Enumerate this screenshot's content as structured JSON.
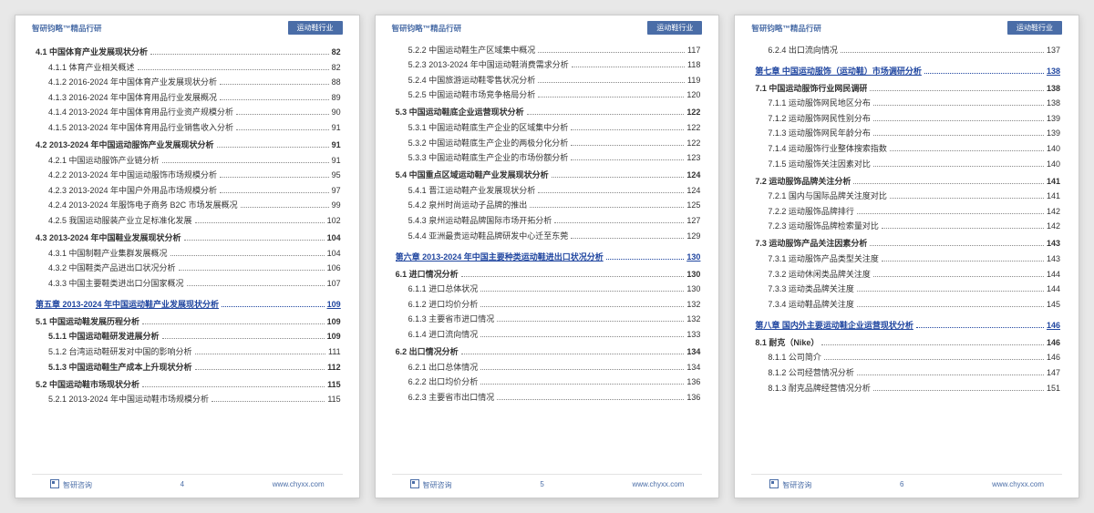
{
  "header": {
    "brand": "智研钧略™精品行研",
    "badge": "运动鞋行业"
  },
  "footer": {
    "company": "智研咨询",
    "url": "www.chyxx.com"
  },
  "pages": [
    {
      "num": "4",
      "rows": [
        {
          "lvl": 0,
          "t": "4.1 中国体育产业发展现状分析",
          "p": "82"
        },
        {
          "lvl": 1,
          "t": "4.1.1 体育产业相关概述",
          "p": "82"
        },
        {
          "lvl": 1,
          "t": "4.1.2 2016-2024 年中国体育产业发展现状分析",
          "p": "88"
        },
        {
          "lvl": 1,
          "t": "4.1.3 2016-2024 年中国体育用品行业发展概况",
          "p": "89"
        },
        {
          "lvl": 1,
          "t": "4.1.4 2013-2024 年中国体育用品行业资产规模分析",
          "p": "90"
        },
        {
          "lvl": 1,
          "t": "4.1.5 2013-2024 年中国体育用品行业销售收入分析",
          "p": "91"
        },
        {
          "lvl": 0,
          "t": "4.2 2013-2024 年中国运动服饰产业发展现状分析",
          "p": "91"
        },
        {
          "lvl": 1,
          "t": "4.2.1 中国运动服饰产业链分析",
          "p": "91"
        },
        {
          "lvl": 1,
          "t": "4.2.2 2013-2024 年中国运动服饰市场规模分析",
          "p": "95"
        },
        {
          "lvl": 1,
          "t": "4.2.3 2013-2024 年中国户外用品市场规模分析",
          "p": "97"
        },
        {
          "lvl": 1,
          "t": "4.2.4 2013-2024 年服饰电子商务 B2C 市场发展概况",
          "p": "99"
        },
        {
          "lvl": 1,
          "t": "4.2.5 我国运动服装产业立足标准化发展",
          "p": "102"
        },
        {
          "lvl": 0,
          "t": "4.3 2013-2024 年中国鞋业发展现状分析",
          "p": "104"
        },
        {
          "lvl": 1,
          "t": "4.3.1 中国制鞋产业集群发展概况",
          "p": "104"
        },
        {
          "lvl": 1,
          "t": "4.3.2 中国鞋类产品进出口状况分析",
          "p": "106"
        },
        {
          "lvl": 1,
          "t": "4.3.3 中国主要鞋类进出口分国家概况",
          "p": "107"
        },
        {
          "lvl": 0,
          "link": true,
          "t": "第五章 2013-2024 年中国运动鞋产业发展现状分析",
          "p": "109"
        },
        {
          "lvl": 0,
          "t": "5.1 中国运动鞋发展历程分析",
          "p": "109"
        },
        {
          "lvl": 1,
          "bold": true,
          "t": "5.1.1 中国运动鞋研发进展分析",
          "p": "109"
        },
        {
          "lvl": 1,
          "t": "5.1.2 台湾运动鞋研发对中国的影响分析",
          "p": "111"
        },
        {
          "lvl": 1,
          "bold": true,
          "t": "5.1.3 中国运动鞋生产成本上升现状分析",
          "p": "112"
        },
        {
          "lvl": 0,
          "t": "5.2 中国运动鞋市场现状分析",
          "p": "115"
        },
        {
          "lvl": 1,
          "t": "5.2.1 2013-2024 年中国运动鞋市场规模分析",
          "p": "115"
        }
      ]
    },
    {
      "num": "5",
      "rows": [
        {
          "lvl": 1,
          "t": "5.2.2 中国运动鞋生产区域集中概况",
          "p": "117"
        },
        {
          "lvl": 1,
          "t": "5.2.3 2013-2024 年中国运动鞋消费需求分析",
          "p": "118"
        },
        {
          "lvl": 1,
          "t": "5.2.4 中国旅游运动鞋零售状况分析",
          "p": "119"
        },
        {
          "lvl": 1,
          "t": "5.2.5 中国运动鞋市场竞争格局分析",
          "p": "120"
        },
        {
          "lvl": 0,
          "t": "5.3 中国运动鞋底企业运营现状分析",
          "p": "122"
        },
        {
          "lvl": 1,
          "t": "5.3.1 中国运动鞋底生产企业的区域集中分析",
          "p": "122"
        },
        {
          "lvl": 1,
          "t": "5.3.2 中国运动鞋底生产企业的两极分化分析",
          "p": "122"
        },
        {
          "lvl": 1,
          "t": "5.3.3 中国运动鞋底生产企业的市场份额分析",
          "p": "123"
        },
        {
          "lvl": 0,
          "t": "5.4 中国重点区域运动鞋产业发展现状分析",
          "p": "124"
        },
        {
          "lvl": 1,
          "t": "5.4.1 晋江运动鞋产业发展现状分析",
          "p": "124"
        },
        {
          "lvl": 1,
          "t": "5.4.2 泉州时尚运动子品牌的推出",
          "p": "125"
        },
        {
          "lvl": 1,
          "t": "5.4.3 泉州运动鞋品牌国际市场开拓分析",
          "p": "127"
        },
        {
          "lvl": 1,
          "t": "5.4.4 亚洲最贵运动鞋品牌研发中心迁至东莞",
          "p": "129"
        },
        {
          "lvl": 0,
          "link": true,
          "t": "第六章 2013-2024 年中国主要种类运动鞋进出口状况分析",
          "p": "130"
        },
        {
          "lvl": 0,
          "t": "6.1 进口情况分析",
          "p": "130"
        },
        {
          "lvl": 1,
          "t": "6.1.1 进口总体状况",
          "p": "130"
        },
        {
          "lvl": 1,
          "t": "6.1.2 进口均价分析",
          "p": "132"
        },
        {
          "lvl": 1,
          "t": "6.1.3 主要省市进口情况",
          "p": "132"
        },
        {
          "lvl": 1,
          "t": "6.1.4 进口流向情况",
          "p": "133"
        },
        {
          "lvl": 0,
          "t": "6.2 出口情况分析",
          "p": "134"
        },
        {
          "lvl": 1,
          "t": "6.2.1 出口总体情况",
          "p": "134"
        },
        {
          "lvl": 1,
          "t": "6.2.2 出口均价分析",
          "p": "136"
        },
        {
          "lvl": 1,
          "t": "6.2.3 主要省市出口情况",
          "p": "136"
        }
      ]
    },
    {
      "num": "6",
      "rows": [
        {
          "lvl": 1,
          "t": "6.2.4 出口流向情况",
          "p": "137"
        },
        {
          "lvl": 0,
          "link": true,
          "t": "第七章 中国运动服饰（运动鞋）市场调研分析",
          "p": "138"
        },
        {
          "lvl": 0,
          "t": "7.1 中国运动服饰行业网民调研",
          "p": "138"
        },
        {
          "lvl": 1,
          "t": "7.1.1 运动服饰网民地区分布",
          "p": "138"
        },
        {
          "lvl": 1,
          "t": "7.1.2 运动服饰网民性别分布",
          "p": "139"
        },
        {
          "lvl": 1,
          "t": "7.1.3 运动服饰网民年龄分布",
          "p": "139"
        },
        {
          "lvl": 1,
          "t": "7.1.4 运动服饰行业整体搜索指数",
          "p": "140"
        },
        {
          "lvl": 1,
          "t": "7.1.5 运动服饰关注因素对比",
          "p": "140"
        },
        {
          "lvl": 0,
          "t": "7.2 运动服饰品牌关注分析",
          "p": "141"
        },
        {
          "lvl": 1,
          "t": "7.2.1 国内与国际品牌关注度对比",
          "p": "141"
        },
        {
          "lvl": 1,
          "t": "7.2.2 运动服饰品牌排行",
          "p": "142"
        },
        {
          "lvl": 1,
          "t": "7.2.3 运动服饰品牌检索量对比",
          "p": "142"
        },
        {
          "lvl": 0,
          "t": "7.3 运动服饰产品关注因素分析",
          "p": "143"
        },
        {
          "lvl": 1,
          "t": "7.3.1 运动服饰产品类型关注度",
          "p": "143"
        },
        {
          "lvl": 1,
          "t": "7.3.2 运动休闲类品牌关注度",
          "p": "144"
        },
        {
          "lvl": 1,
          "t": "7.3.3 运动类品牌关注度",
          "p": "144"
        },
        {
          "lvl": 1,
          "t": "7.3.4 运动鞋品牌关注度",
          "p": "145"
        },
        {
          "lvl": 0,
          "link": true,
          "t": "第八章 国内外主要运动鞋企业运营现状分析",
          "p": "146"
        },
        {
          "lvl": 0,
          "t": "8.1 耐克（Nike）",
          "p": "146"
        },
        {
          "lvl": 1,
          "t": "8.1.1 公司简介",
          "p": "146"
        },
        {
          "lvl": 1,
          "t": "8.1.2 公司经营情况分析",
          "p": "147"
        },
        {
          "lvl": 1,
          "t": "8.1.3 耐克品牌经营情况分析",
          "p": "151"
        }
      ]
    }
  ]
}
